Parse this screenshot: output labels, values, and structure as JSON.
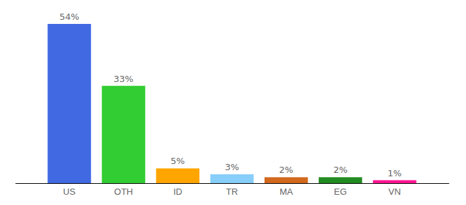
{
  "chart_data": {
    "type": "bar",
    "categories": [
      "US",
      "OTH",
      "ID",
      "TR",
      "MA",
      "EG",
      "VN"
    ],
    "values": [
      54,
      33,
      5,
      3,
      2,
      2,
      1
    ],
    "value_labels": [
      "54%",
      "33%",
      "5%",
      "3%",
      "2%",
      "2%",
      "1%"
    ],
    "colors": [
      "#4169e1",
      "#32cd32",
      "#ffa500",
      "#87cefa",
      "#d2691e",
      "#228b22",
      "#ff1493"
    ],
    "data_labels": true,
    "tick_labels": "x"
  }
}
